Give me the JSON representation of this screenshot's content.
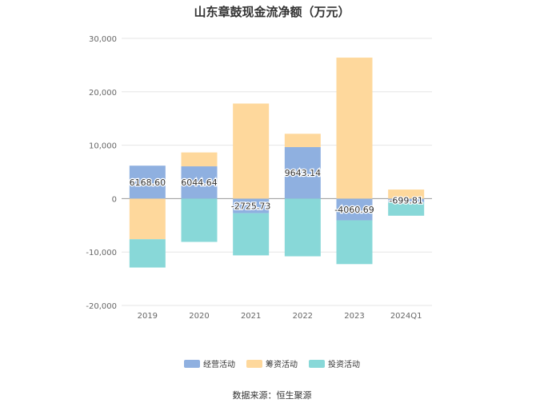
{
  "chart_data": {
    "type": "bar",
    "stacked": true,
    "title": "山东章鼓现金流净额（万元）",
    "categories": [
      "2019",
      "2020",
      "2021",
      "2022",
      "2023",
      "2024Q1"
    ],
    "ylim": [
      -20000,
      30000
    ],
    "yticks": [
      30000,
      20000,
      10000,
      0,
      -10000,
      -20000
    ],
    "ytick_labels": [
      "30,000",
      "20,000",
      "10,000",
      "0",
      "-10,000",
      "-20,000"
    ],
    "grid": true,
    "legend_position": "bottom",
    "series": [
      {
        "name": "经营活动",
        "color": "#8fb0e0",
        "values": [
          6168.6,
          6044.64,
          -2725.73,
          9643.14,
          -4060.69,
          -699.81
        ]
      },
      {
        "name": "筹资活动",
        "color": "#fed89c",
        "values": [
          -7600,
          2600,
          17800,
          2500,
          26400,
          1700
        ]
      },
      {
        "name": "投资活动",
        "color": "#88d8d8",
        "values": [
          -5300,
          -8100,
          -7900,
          -10800,
          -8200,
          -2500
        ]
      }
    ],
    "data_labels": [
      "6168.60",
      "6044.64",
      "-2725.73",
      "9643.14",
      "-4060.69",
      "-699.81"
    ]
  },
  "footer": {
    "source": "数据来源：恒生聚源"
  }
}
